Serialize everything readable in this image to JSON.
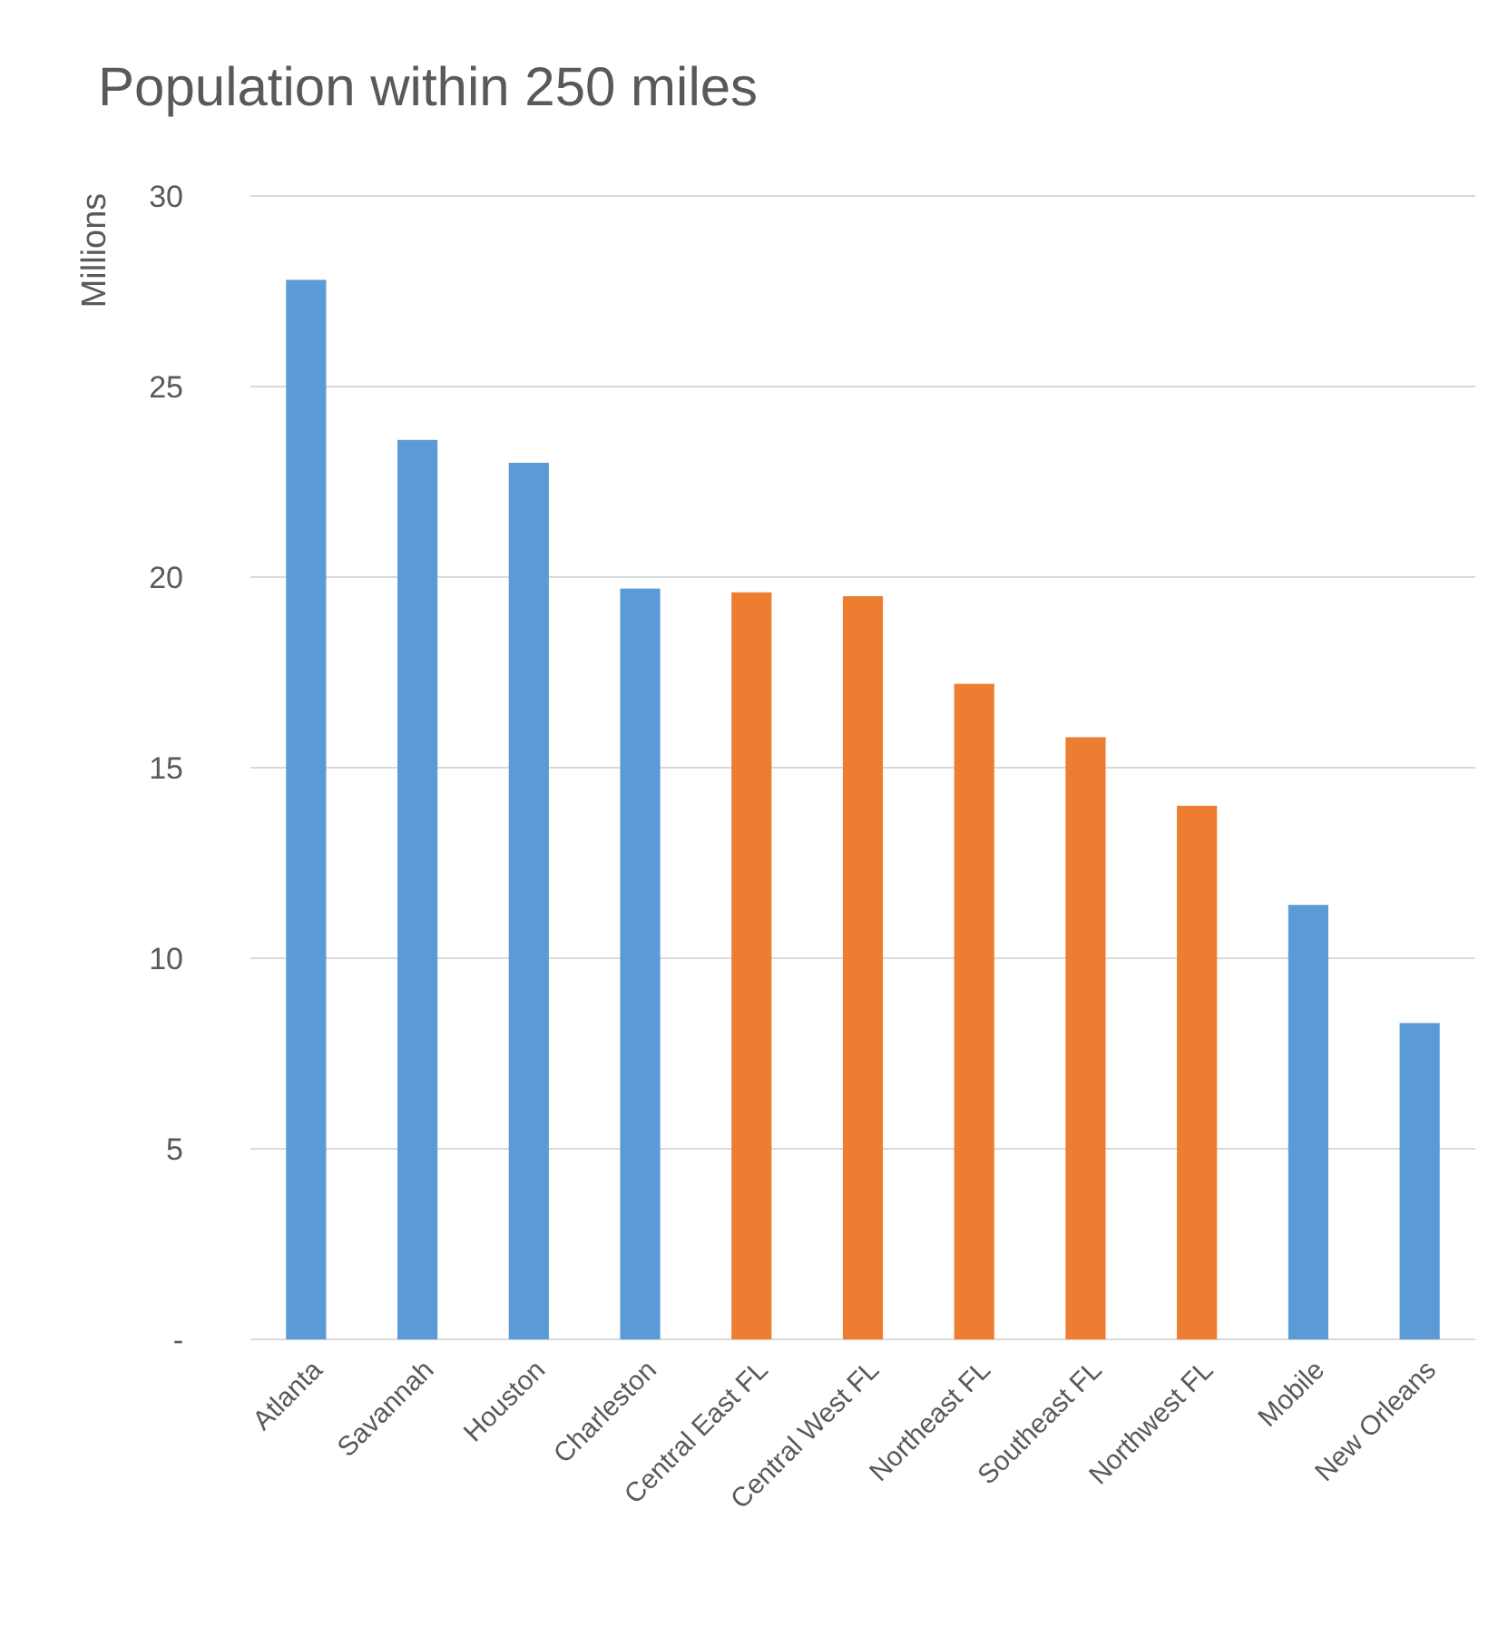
{
  "chart_data": {
    "type": "bar",
    "title": "Population within 250 miles",
    "ylabel": "Millions",
    "categories": [
      "Atlanta",
      "Savannah",
      "Houston",
      "Charleston",
      "Central East FL",
      "Central West FL",
      "Northeast FL",
      "Southeast FL",
      "Northwest FL",
      "Mobile",
      "New Orleans"
    ],
    "values": [
      27.8,
      23.6,
      23.0,
      19.7,
      19.6,
      19.5,
      17.2,
      15.8,
      14.0,
      11.4,
      8.3
    ],
    "colors": [
      "#5b9bd5",
      "#5b9bd5",
      "#5b9bd5",
      "#5b9bd5",
      "#ed7d31",
      "#ed7d31",
      "#ed7d31",
      "#ed7d31",
      "#ed7d31",
      "#5b9bd5",
      "#5b9bd5"
    ],
    "ylim": [
      0,
      30
    ],
    "yticks": [
      {
        "value": 0,
        "label": "-"
      },
      5,
      10,
      15,
      20,
      25,
      30
    ],
    "grid": "y"
  }
}
